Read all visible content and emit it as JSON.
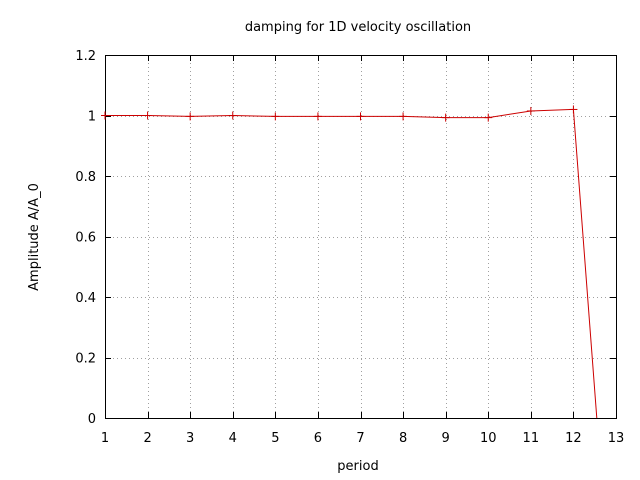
{
  "chart_data": {
    "type": "line",
    "title": "damping for 1D velocity oscillation",
    "xlabel": "period",
    "ylabel": "Amplitude A/A_0",
    "xlim": [
      1,
      13
    ],
    "ylim": [
      0,
      1.2
    ],
    "xticks": [
      1,
      2,
      3,
      4,
      5,
      6,
      7,
      8,
      9,
      10,
      11,
      12,
      13
    ],
    "yticks": [
      0,
      0.2,
      0.4,
      0.6,
      0.8,
      1,
      1.2
    ],
    "xtick_labels": [
      "1",
      "2",
      "3",
      "4",
      "5",
      "6",
      "7",
      "8",
      "9",
      "10",
      "11",
      "12",
      "13"
    ],
    "ytick_labels": [
      "0",
      "0.2",
      "0.4",
      "0.6",
      "0.8",
      "1",
      "1.2"
    ],
    "grid": true,
    "legend": "none",
    "series": [
      {
        "color": "#cc0000",
        "x": [
          1,
          2,
          3,
          4,
          5,
          6,
          7,
          8,
          9,
          10,
          11,
          12,
          12.55
        ],
        "y": [
          1.0,
          1.0,
          0.997,
          1.0,
          0.997,
          0.997,
          0.997,
          0.997,
          0.993,
          0.993,
          1.015,
          1.02,
          0
        ],
        "markers": [
          true,
          true,
          true,
          true,
          true,
          true,
          true,
          true,
          true,
          true,
          true,
          true,
          false
        ]
      }
    ]
  }
}
